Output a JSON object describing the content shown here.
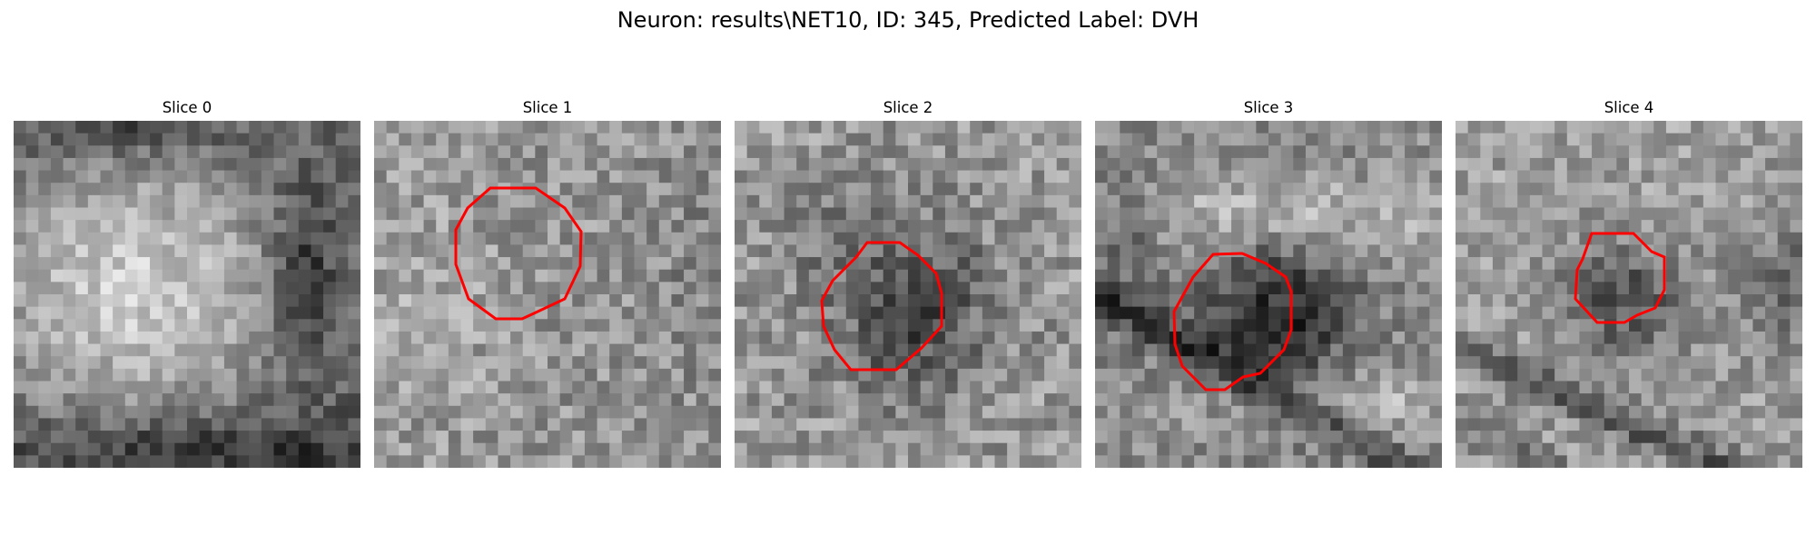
{
  "figure": {
    "suptitle": "Neuron: results\\NET10, ID: 345, Predicted Label: DVH",
    "contour_color": "#ff0000"
  },
  "panels": [
    {
      "title": "Slice 0",
      "has_contour": false,
      "background": "bright-cell-center-dark-edges"
    },
    {
      "title": "Slice 1",
      "has_contour": true,
      "background": "mid-gray-noise"
    },
    {
      "title": "Slice 2",
      "has_contour": true,
      "background": "dark-blob-center"
    },
    {
      "title": "Slice 3",
      "has_contour": true,
      "background": "dark-blob-with-bright-bands"
    },
    {
      "title": "Slice 4",
      "has_contour": true,
      "background": "small-dark-blob-diagonal-dark-band"
    }
  ]
}
